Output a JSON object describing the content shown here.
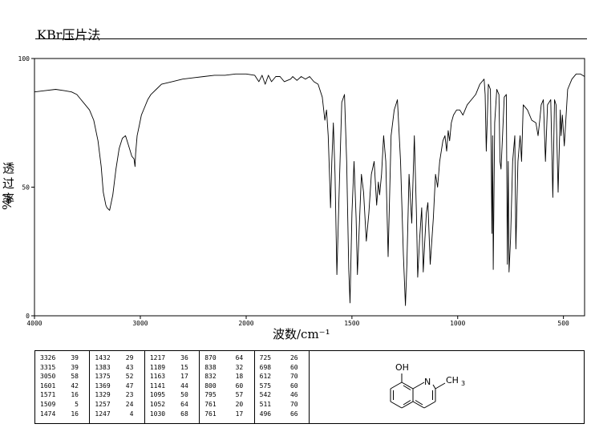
{
  "header": {
    "title": "KBr压片法"
  },
  "chart_data": {
    "type": "line",
    "xlabel": "波数/cm⁻¹",
    "ylabel": [
      "透",
      "过",
      "率",
      "%/"
    ],
    "xlim": [
      4000,
      400
    ],
    "ylim": [
      0,
      100
    ],
    "x_ticks": [
      4000,
      3000,
      2000,
      1500,
      1000,
      500
    ],
    "y_ticks": [
      0,
      50,
      100
    ],
    "grid": false,
    "series": [
      {
        "x": [
          4000,
          3900,
          3800,
          3720,
          3650,
          3600,
          3560,
          3520,
          3480,
          3440,
          3400,
          3370,
          3350,
          3326,
          3315,
          3290,
          3260,
          3230,
          3200,
          3170,
          3140,
          3110,
          3080,
          3060,
          3050,
          3045,
          3030,
          3010,
          2990,
          2960,
          2930,
          2900,
          2850,
          2800,
          2700,
          2600,
          2500,
          2400,
          2300,
          2200,
          2100,
          2050,
          2000,
          1960,
          1940,
          1925,
          1910,
          1895,
          1880,
          1860,
          1840,
          1820,
          1790,
          1780,
          1760,
          1740,
          1720,
          1700,
          1680,
          1660,
          1640,
          1628,
          1620,
          1612,
          1605,
          1601,
          1595,
          1588,
          1580,
          1571,
          1560,
          1548,
          1535,
          1525,
          1515,
          1509,
          1500,
          1490,
          1480,
          1474,
          1465,
          1455,
          1445,
          1432,
          1420,
          1408,
          1395,
          1383,
          1375,
          1369,
          1360,
          1350,
          1340,
          1329,
          1315,
          1300,
          1285,
          1270,
          1257,
          1250,
          1247,
          1240,
          1230,
          1217,
          1205,
          1195,
          1189,
          1180,
          1170,
          1163,
          1155,
          1148,
          1141,
          1130,
          1115,
          1105,
          1095,
          1085,
          1070,
          1060,
          1052,
          1045,
          1038,
          1030,
          1020,
          1005,
          990,
          975,
          955,
          935,
          915,
          895,
          875,
          870,
          865,
          855,
          845,
          838,
          835,
          832,
          825,
          815,
          805,
          800,
          795,
          788,
          780,
          770,
          765,
          761,
          757,
          750,
          740,
          730,
          725,
          715,
          705,
          698,
          690,
          670,
          650,
          630,
          620,
          612,
          605,
          595,
          585,
          575,
          560,
          550,
          542,
          535,
          525,
          515,
          511,
          505,
          496,
          480,
          460,
          440,
          420,
          400
        ],
        "y": [
          87,
          87.5,
          88,
          87.5,
          87,
          86,
          84,
          82,
          80,
          76,
          68,
          58,
          48,
          43,
          42,
          41,
          47,
          57,
          65,
          69,
          70,
          66,
          62,
          61,
          58,
          63,
          70,
          74,
          78,
          81,
          84,
          86,
          88,
          90,
          91,
          92,
          92.5,
          93,
          93.5,
          93.5,
          94,
          94,
          94,
          93.5,
          91,
          93.5,
          90,
          93.5,
          91,
          93,
          93,
          91,
          92,
          93,
          91.5,
          93,
          92,
          93,
          91,
          90,
          85,
          76,
          80,
          70,
          52,
          42,
          60,
          75,
          55,
          16,
          50,
          83,
          86,
          60,
          18,
          5,
          40,
          60,
          38,
          16,
          35,
          55,
          48,
          29,
          40,
          55,
          60,
          43,
          52,
          47,
          55,
          70,
          60,
          23,
          70,
          80,
          84,
          60,
          24,
          10,
          4,
          20,
          55,
          36,
          70,
          40,
          15,
          30,
          42,
          17,
          30,
          40,
          44,
          20,
          38,
          55,
          50,
          60,
          68,
          70,
          64,
          72,
          68,
          75,
          78,
          80,
          80,
          78,
          82,
          84,
          86,
          90,
          92,
          86,
          64,
          90,
          88,
          32,
          70,
          18,
          75,
          88,
          86,
          60,
          57,
          70,
          85,
          86,
          20,
          60,
          17,
          30,
          60,
          70,
          26,
          60,
          70,
          60,
          82,
          80,
          76,
          75,
          70,
          76,
          82,
          84,
          60,
          82,
          84,
          46,
          84,
          82,
          48,
          80,
          70,
          78,
          66,
          88,
          92,
          94,
          94,
          93
        ]
      }
    ],
    "peaks": [
      [
        [
          "3326",
          "39"
        ],
        [
          "3315",
          "39"
        ],
        [
          "3050",
          "58"
        ],
        [
          "1601",
          "42"
        ],
        [
          "1571",
          "16"
        ],
        [
          "1509",
          "5"
        ],
        [
          "1474",
          "16"
        ]
      ],
      [
        [
          "1432",
          "29"
        ],
        [
          "1383",
          "43"
        ],
        [
          "1375",
          "52"
        ],
        [
          "1369",
          "47"
        ],
        [
          "1329",
          "23"
        ],
        [
          "1257",
          "24"
        ],
        [
          "1247",
          "4"
        ]
      ],
      [
        [
          "1217",
          "36"
        ],
        [
          "1189",
          "15"
        ],
        [
          "1163",
          "17"
        ],
        [
          "1141",
          "44"
        ],
        [
          "1095",
          "50"
        ],
        [
          "1052",
          "64"
        ],
        [
          "1030",
          "68"
        ]
      ],
      [
        [
          "870",
          "64"
        ],
        [
          "838",
          "32"
        ],
        [
          "832",
          "18"
        ],
        [
          "800",
          "60"
        ],
        [
          "795",
          "57"
        ],
        [
          "761",
          "20"
        ],
        [
          "761",
          "17"
        ]
      ],
      [
        [
          "725",
          "26"
        ],
        [
          "698",
          "60"
        ],
        [
          "612",
          "70"
        ],
        [
          "575",
          "60"
        ],
        [
          "542",
          "46"
        ],
        [
          "511",
          "70"
        ],
        [
          "496",
          "66"
        ]
      ]
    ]
  },
  "structure": {
    "oh_label": "OH",
    "n_label": "N",
    "ch3_label": "CH",
    "ch3_sub": "3"
  }
}
